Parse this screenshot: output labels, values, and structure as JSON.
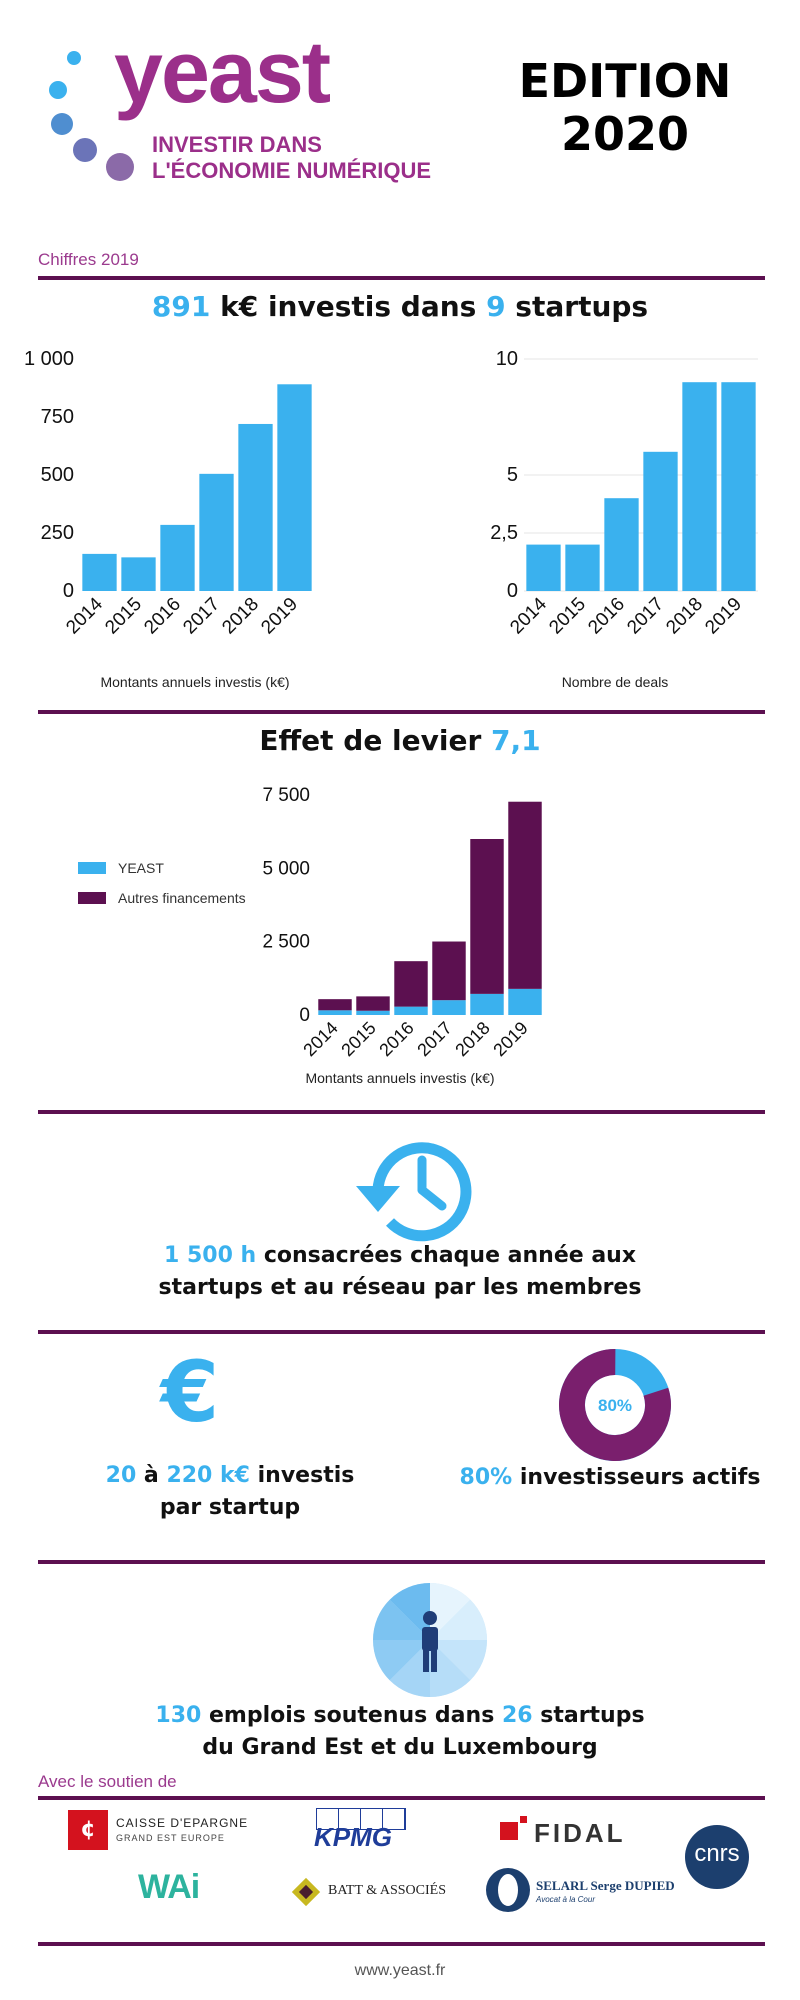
{
  "header": {
    "brand": "yeast",
    "tagline_line1": "INVESTIR DANS",
    "tagline_line2": "L'ÉCONOMIE NUMÉRIQUE",
    "edition_line1": "EDITION",
    "edition_line2": "2020"
  },
  "section_label": "Chiffres 2019",
  "headline_invest": {
    "amount": "891",
    "unit": " k€ investis dans ",
    "count": "9",
    "suffix": " startups"
  },
  "headline_levier": {
    "text": "Effet de levier ",
    "value": "7,1"
  },
  "colors": {
    "purple": "#5c1050",
    "blue": "#3ab1ee",
    "magenta": "#9b3a8e"
  },
  "chart_data": [
    {
      "id": "montants",
      "type": "bar",
      "categories": [
        "2014",
        "2015",
        "2016",
        "2017",
        "2018",
        "2019"
      ],
      "values": [
        160,
        145,
        285,
        505,
        720,
        891
      ],
      "ylim": [
        0,
        1000
      ],
      "yticks": [
        "0",
        "250",
        "500",
        "750",
        "1 000"
      ],
      "ytick_values": [
        0,
        250,
        500,
        750,
        1000
      ],
      "grid": false,
      "caption": "Montants annuels investis (k€)"
    },
    {
      "id": "deals",
      "type": "bar",
      "categories": [
        "2014",
        "2015",
        "2016",
        "2017",
        "2018",
        "2019"
      ],
      "values": [
        2,
        2,
        4,
        6,
        9,
        9
      ],
      "ylim": [
        0,
        10
      ],
      "yticks": [
        "0",
        "2,5",
        "5",
        "10"
      ],
      "ytick_values": [
        0,
        2.5,
        5,
        10
      ],
      "grid": true,
      "caption": "Nombre de deals"
    },
    {
      "id": "levier",
      "type": "bar",
      "stacked": true,
      "categories": [
        "2014",
        "2015",
        "2016",
        "2017",
        "2018",
        "2019"
      ],
      "series": [
        {
          "name": "YEAST",
          "color": "#3ab1ee",
          "values": [
            160,
            145,
            285,
            505,
            720,
            891
          ]
        },
        {
          "name": "Autres financements",
          "color": "#5c1050",
          "values": [
            380,
            490,
            1550,
            2000,
            5280,
            6380
          ]
        }
      ],
      "ylim": [
        0,
        7500
      ],
      "yticks": [
        "0",
        "2 500",
        "5 000",
        "7 500"
      ],
      "ytick_values": [
        0,
        2500,
        5000,
        7500
      ],
      "legend": "left",
      "caption": "Montants annuels investis (k€)"
    }
  ],
  "hours": {
    "value": "1 500 h",
    "text1": " consacrées chaque année aux",
    "line2": "startups et au réseau par les membres"
  },
  "range": {
    "low": "20",
    "mid": " à ",
    "high": "220 k€",
    "text": " investis",
    "line2": "par startup"
  },
  "active": {
    "donut_label": "80%",
    "donut_fraction": 0.8,
    "value": "80%",
    "text": " investisseurs actifs"
  },
  "jobs": {
    "count": "130",
    "text1": " emplois soutenus dans ",
    "startups": "26",
    "text2": " startups",
    "line2": "du Grand Est et du Luxembourg"
  },
  "sponsors_label": "Avec le soutien de",
  "sponsors": {
    "caisse_line1": "CAISSE D'EPARGNE",
    "caisse_line2": "GRAND EST EUROPE",
    "kpmg": "KPMG",
    "fidal": "FIDAL",
    "cnrs": "cnrs",
    "wai": "WAi",
    "batt": "BATT & ASSOCIÉS",
    "selarl": "SELARL Serge DUPIED",
    "selarl_sub": "Avocat à la Cour"
  },
  "footer_url": "www.yeast.fr"
}
